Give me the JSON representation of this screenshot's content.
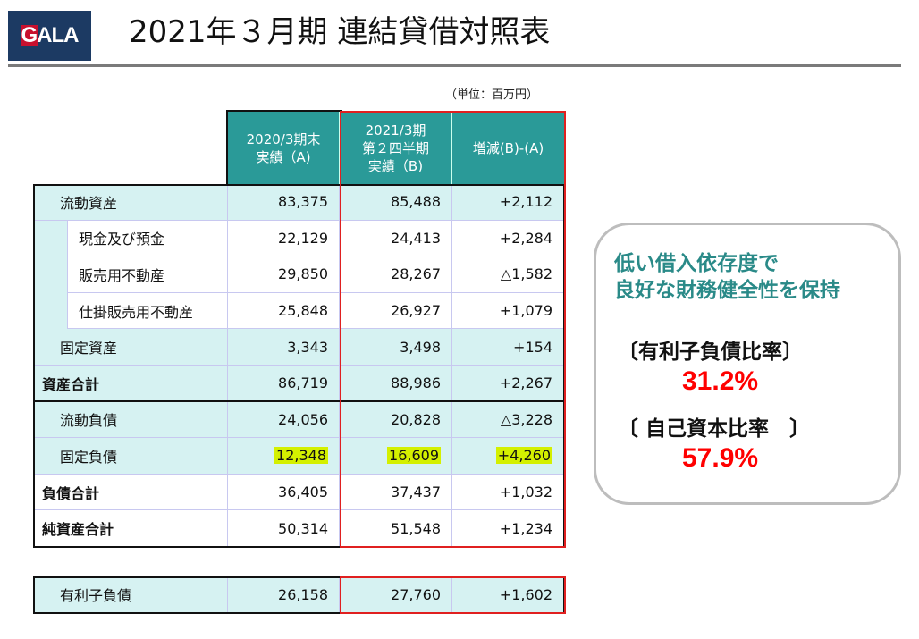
{
  "header": {
    "logo_text": "GALA",
    "title": "2021年３月期 連結貸借対照表"
  },
  "unit": "（単位：百万円）",
  "columns": [
    "2020/3期末\n実績（A)",
    "2021/3期\n第２四半期\n実績（B)",
    "増減(B)-(A)"
  ],
  "rows": [
    {
      "label": "流動資産",
      "a": "83,375",
      "b": "85,488",
      "diff": "+2,112"
    },
    {
      "label": "現金及び預金",
      "a": "22,129",
      "b": "24,413",
      "diff": "+2,284"
    },
    {
      "label": "販売用不動産",
      "a": "29,850",
      "b": "28,267",
      "diff": "△1,582"
    },
    {
      "label": "仕掛販売用不動産",
      "a": "25,848",
      "b": "26,927",
      "diff": "+1,079"
    },
    {
      "label": "固定資産",
      "a": "3,343",
      "b": "3,498",
      "diff": "+154"
    },
    {
      "label": "資産合計",
      "a": "86,719",
      "b": "88,986",
      "diff": "+2,267"
    },
    {
      "label": "流動負債",
      "a": "24,056",
      "b": "20,828",
      "diff": "△3,228"
    },
    {
      "label": "固定負債",
      "a": "12,348",
      "b": "16,609",
      "diff": "+4,260"
    },
    {
      "label": "負債合計",
      "a": "36,405",
      "b": "37,437",
      "diff": "+1,032"
    },
    {
      "label": "純資産合計",
      "a": "50,314",
      "b": "51,548",
      "diff": "+1,234"
    }
  ],
  "extra_row": {
    "label": "有利子負債",
    "a": "26,158",
    "b": "27,760",
    "diff": "+1,602"
  },
  "callout": {
    "headline": "低い借入依存度で\n良好な財務健全性を保持",
    "metric1_label": "〔有利子負債比率〕",
    "metric1_value": "31.2%",
    "metric2_label": "〔 自己資本比率　〕",
    "metric2_value": "57.9%"
  },
  "colors": {
    "header_teal": "#2a9a98",
    "row_cyan": "#d6f2f2",
    "highlight": "#d4f000",
    "accent_red": "#ff0000"
  }
}
